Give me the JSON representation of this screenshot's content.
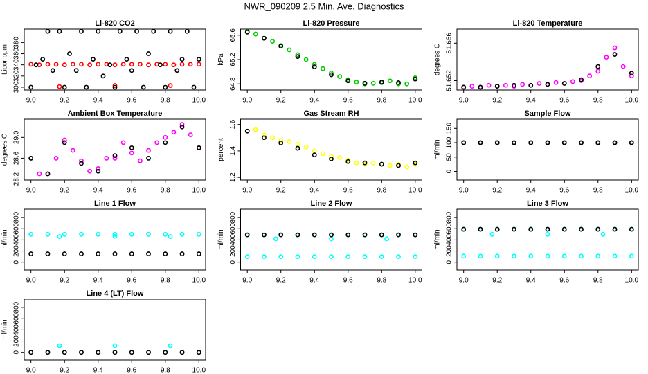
{
  "title": "NWR_090209  2.5 Min. Ave. Diagnostics",
  "chart_data": [
    {
      "type": "scatter",
      "title": "Li-820 CO2",
      "y_label": "Licor ppm",
      "xlim": [
        8.96,
        10.04
      ],
      "xticks": [
        {
          "value": 9,
          "label": "9.0"
        },
        9.2,
        9.4,
        9.6,
        9.8,
        {
          "value": 10,
          "label": "10.0"
        }
      ],
      "ylim": [
        295,
        404
      ],
      "yticks": [
        300,
        320,
        340,
        360,
        380
      ],
      "series": [
        {
          "color": "#ff0000",
          "x": [
            9.0,
            9.05,
            9.1,
            9.15,
            9.2,
            9.25,
            9.3,
            9.35,
            9.4,
            9.45,
            9.5,
            9.55,
            9.6,
            9.65,
            9.7,
            9.75,
            9.8,
            9.85,
            9.9,
            9.95,
            10.0
          ],
          "values": [
            341,
            340,
            341,
            341,
            340,
            341,
            341,
            340,
            341,
            341,
            340,
            341,
            341,
            341,
            340,
            341,
            341,
            340,
            341,
            341,
            341
          ]
        },
        {
          "color": "#ff0000",
          "x": [
            9.17,
            9.5,
            9.83
          ],
          "values": [
            301,
            303,
            303
          ]
        },
        {
          "color": "#000000",
          "x": [
            9.0,
            9.03,
            9.07,
            9.1,
            9.13,
            9.17,
            9.2,
            9.23,
            9.27,
            9.3,
            9.33,
            9.37,
            9.4,
            9.43,
            9.47,
            9.5,
            9.53,
            9.57,
            9.6,
            9.63,
            9.67,
            9.7,
            9.73,
            9.77,
            9.8,
            9.83,
            9.87,
            9.9,
            9.93,
            9.97,
            10.0
          ],
          "values": [
            300,
            340,
            350,
            400,
            330,
            400,
            300,
            360,
            330,
            400,
            300,
            350,
            400,
            320,
            340,
            300,
            400,
            350,
            330,
            400,
            300,
            360,
            400,
            340,
            300,
            400,
            330,
            350,
            400,
            300,
            350
          ]
        }
      ]
    },
    {
      "type": "scatter",
      "title": "Li-820 Pressure",
      "y_label": "kPa",
      "xlim": [
        8.96,
        10.04
      ],
      "xticks": [
        {
          "value": 9,
          "label": "9.0"
        },
        9.2,
        9.4,
        9.6,
        9.8,
        {
          "value": 10,
          "label": "10.0"
        }
      ],
      "ylim": [
        64.7,
        65.7
      ],
      "yticks": [
        64.8,
        65.2,
        65.6
      ],
      "series": [
        {
          "color": "#00cd00",
          "x": [
            9.0,
            9.05,
            9.1,
            9.15,
            9.2,
            9.25,
            9.3,
            9.35,
            9.4,
            9.45,
            9.5,
            9.55,
            9.6,
            9.65,
            9.7,
            9.75,
            9.8,
            9.85,
            9.9,
            9.95,
            10.0
          ],
          "values": [
            65.66,
            65.62,
            65.55,
            65.5,
            65.43,
            65.36,
            65.28,
            65.2,
            65.12,
            65.05,
            64.98,
            64.92,
            64.87,
            64.83,
            64.8,
            64.81,
            64.82,
            64.85,
            64.8,
            64.8,
            64.9
          ]
        },
        {
          "color": "#000000",
          "x": [
            9.0,
            9.1,
            9.2,
            9.3,
            9.4,
            9.5,
            9.6,
            9.7,
            9.8,
            9.9,
            10.0
          ],
          "values": [
            65.65,
            65.55,
            65.42,
            65.25,
            65.08,
            64.95,
            64.85,
            64.81,
            64.83,
            64.82,
            64.88
          ]
        }
      ]
    },
    {
      "type": "scatter",
      "title": "Li-820 Temperature",
      "y_label": "degrees C",
      "xlim": [
        8.96,
        10.04
      ],
      "xticks": [
        {
          "value": 9,
          "label": "9.0"
        },
        9.2,
        9.4,
        9.6,
        9.8,
        {
          "value": 10,
          "label": "10.0"
        }
      ],
      "ylim": [
        51.651,
        51.6575
      ],
      "yticks": [
        51.652,
        51.656
      ],
      "series": [
        {
          "color": "#ff00ff",
          "x": [
            9.0,
            9.05,
            9.1,
            9.15,
            9.2,
            9.25,
            9.3,
            9.35,
            9.4,
            9.45,
            9.5,
            9.55,
            9.6,
            9.65,
            9.7,
            9.75,
            9.8,
            9.85,
            9.9,
            9.95,
            10.0
          ],
          "values": [
            51.6513,
            51.6514,
            51.6513,
            51.6515,
            51.6514,
            51.6515,
            51.6514,
            51.6516,
            51.6515,
            51.6517,
            51.6516,
            51.6518,
            51.6517,
            51.6519,
            51.652,
            51.6525,
            51.653,
            51.6545,
            51.6555,
            51.6535,
            51.6525
          ]
        },
        {
          "color": "#000000",
          "x": [
            9.0,
            9.1,
            9.2,
            9.3,
            9.4,
            9.5,
            9.6,
            9.7,
            9.8,
            9.9,
            10.0
          ],
          "values": [
            51.6513,
            51.6513,
            51.6514,
            51.6515,
            51.6515,
            51.6516,
            51.6517,
            51.6521,
            51.6535,
            51.6548,
            51.6528
          ]
        }
      ]
    },
    {
      "type": "scatter",
      "title": "Ambient Box Temperature",
      "y_label": "degrees C",
      "xlim": [
        8.96,
        10.04
      ],
      "xticks": [
        {
          "value": 9,
          "label": "9.0"
        },
        9.2,
        9.4,
        9.6,
        9.8,
        {
          "value": 10,
          "label": "10.0"
        }
      ],
      "ylim": [
        28.18,
        29.35
      ],
      "yticks": [
        28.2,
        28.6,
        {
          "value": 29,
          "label": "29.0"
        }
      ],
      "series": [
        {
          "color": "#ff00ff",
          "x": [
            9.0,
            9.05,
            9.1,
            9.15,
            9.2,
            9.25,
            9.3,
            9.35,
            9.4,
            9.45,
            9.5,
            9.55,
            9.6,
            9.65,
            9.7,
            9.75,
            9.8,
            9.85,
            9.9,
            9.95,
            10.0
          ],
          "values": [
            28.6,
            28.3,
            28.3,
            28.6,
            28.95,
            28.75,
            28.55,
            28.35,
            28.4,
            28.6,
            28.6,
            28.9,
            28.7,
            28.55,
            28.75,
            28.9,
            29.0,
            29.1,
            29.25,
            29.05,
            28.8
          ]
        },
        {
          "color": "#000000",
          "x": [
            9.0,
            9.1,
            9.2,
            9.3,
            9.4,
            9.5,
            9.6,
            9.7,
            9.8,
            9.9,
            10.0
          ],
          "values": [
            28.6,
            28.3,
            28.9,
            28.5,
            28.35,
            28.65,
            28.8,
            28.6,
            28.9,
            29.2,
            28.8
          ]
        }
      ]
    },
    {
      "type": "scatter",
      "title": "Gas Stream RH",
      "y_label": "percent",
      "xlim": [
        8.96,
        10.04
      ],
      "xticks": [
        {
          "value": 9,
          "label": "9.0"
        },
        9.2,
        9.4,
        9.6,
        9.8,
        {
          "value": 10,
          "label": "10.0"
        }
      ],
      "ylim": [
        1.18,
        1.64
      ],
      "yticks": [
        1.2,
        1.4,
        1.6
      ],
      "series": [
        {
          "color": "#ffff00",
          "x": [
            9.0,
            9.05,
            9.1,
            9.15,
            9.2,
            9.25,
            9.3,
            9.35,
            9.4,
            9.45,
            9.5,
            9.55,
            9.6,
            9.65,
            9.7,
            9.75,
            9.8,
            9.85,
            9.9,
            9.95,
            10.0
          ],
          "values": [
            1.55,
            1.56,
            1.52,
            1.5,
            1.48,
            1.47,
            1.45,
            1.43,
            1.4,
            1.38,
            1.36,
            1.35,
            1.33,
            1.31,
            1.3,
            1.31,
            1.3,
            1.29,
            1.3,
            1.28,
            1.3
          ]
        },
        {
          "color": "#000000",
          "x": [
            9.0,
            9.1,
            9.2,
            9.3,
            9.4,
            9.5,
            9.6,
            9.7,
            9.8,
            9.9,
            10.0
          ],
          "values": [
            1.55,
            1.5,
            1.46,
            1.42,
            1.37,
            1.34,
            1.32,
            1.31,
            1.3,
            1.29,
            1.31
          ]
        }
      ]
    },
    {
      "type": "scatter",
      "title": "Sample Flow",
      "y_label": "ml/min",
      "xlim": [
        8.96,
        10.04
      ],
      "xticks": [
        {
          "value": 9,
          "label": "9.0"
        },
        9.2,
        9.4,
        9.6,
        9.8,
        {
          "value": 10,
          "label": "10.0"
        }
      ],
      "ylim": [
        -30,
        182
      ],
      "yticks": [
        0,
        50,
        100,
        150
      ],
      "series": [
        {
          "color": "#00008b",
          "x": [
            9.0,
            9.1,
            9.2,
            9.3,
            9.4,
            9.5,
            9.6,
            9.7,
            9.8,
            9.9,
            10.0
          ],
          "values": [
            100,
            100,
            100,
            100,
            100,
            100,
            100,
            100,
            100,
            100,
            100
          ]
        },
        {
          "color": "#000000",
          "x": [
            9.0,
            9.1,
            9.2,
            9.3,
            9.4,
            9.5,
            9.6,
            9.7,
            9.8,
            9.9,
            10.0
          ],
          "values": [
            100,
            100,
            100,
            100,
            100,
            100,
            100,
            100,
            100,
            100,
            100
          ]
        }
      ]
    },
    {
      "type": "scatter",
      "title": "Line 1 Flow",
      "y_label": "ml/min",
      "xlim": [
        8.96,
        10.04
      ],
      "xticks": [
        {
          "value": 9,
          "label": "9.0"
        },
        9.2,
        9.4,
        9.6,
        9.8,
        {
          "value": 10,
          "label": "10.0"
        }
      ],
      "ylim": [
        -140,
        950
      ],
      "yticks": [
        0,
        200,
        400,
        600,
        800
      ],
      "series": [
        {
          "color": "#00ffff",
          "x": [
            9.0,
            9.1,
            9.2,
            9.3,
            9.4,
            9.5,
            9.6,
            9.7,
            9.8,
            9.9,
            10.0
          ],
          "values": [
            500,
            500,
            500,
            500,
            500,
            500,
            500,
            500,
            500,
            500,
            500
          ]
        },
        {
          "color": "#00ffff",
          "x": [
            9.17,
            9.5,
            9.83
          ],
          "values": [
            460,
            465,
            460
          ]
        },
        {
          "color": "#000000",
          "x": [
            9.0,
            9.1,
            9.2,
            9.3,
            9.4,
            9.5,
            9.6,
            9.7,
            9.8,
            9.9,
            10.0
          ],
          "values": [
            150,
            150,
            150,
            150,
            150,
            150,
            150,
            150,
            150,
            150,
            150
          ]
        }
      ]
    },
    {
      "type": "scatter",
      "title": "Line 2 Flow",
      "y_label": "ml/min",
      "xlim": [
        8.96,
        10.04
      ],
      "xticks": [
        {
          "value": 9,
          "label": "9.0"
        },
        9.2,
        9.4,
        9.6,
        9.8,
        {
          "value": 10,
          "label": "10.0"
        }
      ],
      "ylim": [
        -140,
        950
      ],
      "yticks": [
        0,
        200,
        400,
        600,
        800
      ],
      "series": [
        {
          "color": "#00ffff",
          "x": [
            9.0,
            9.1,
            9.2,
            9.3,
            9.4,
            9.5,
            9.6,
            9.7,
            9.8,
            9.9,
            10.0
          ],
          "values": [
            490,
            490,
            490,
            490,
            490,
            490,
            490,
            490,
            490,
            490,
            490
          ]
        },
        {
          "color": "#00ffff",
          "x": [
            9.0,
            9.1,
            9.2,
            9.3,
            9.4,
            9.5,
            9.6,
            9.7,
            9.8,
            9.9,
            10.0
          ],
          "values": [
            100,
            100,
            100,
            100,
            100,
            100,
            100,
            100,
            100,
            100,
            100
          ]
        },
        {
          "color": "#00ffff",
          "x": [
            9.17,
            9.5,
            9.83
          ],
          "values": [
            420,
            420,
            420
          ]
        },
        {
          "color": "#000000",
          "x": [
            9.0,
            9.1,
            9.2,
            9.3,
            9.4,
            9.5,
            9.6,
            9.7,
            9.8,
            9.9,
            10.0
          ],
          "values": [
            490,
            490,
            490,
            490,
            490,
            490,
            490,
            490,
            490,
            490,
            490
          ]
        }
      ]
    },
    {
      "type": "scatter",
      "title": "Line 3 Flow",
      "y_label": "ml/min",
      "xlim": [
        8.96,
        10.04
      ],
      "xticks": [
        {
          "value": 9,
          "label": "9.0"
        },
        9.2,
        9.4,
        9.6,
        9.8,
        {
          "value": 10,
          "label": "10.0"
        }
      ],
      "ylim": [
        -140,
        950
      ],
      "yticks": [
        0,
        200,
        400,
        600,
        800
      ],
      "series": [
        {
          "color": "#00ffff",
          "x": [
            9.0,
            9.1,
            9.2,
            9.3,
            9.4,
            9.5,
            9.6,
            9.7,
            9.8,
            9.9,
            10.0
          ],
          "values": [
            590,
            590,
            590,
            590,
            590,
            590,
            590,
            590,
            590,
            590,
            590
          ]
        },
        {
          "color": "#00ffff",
          "x": [
            9.0,
            9.1,
            9.2,
            9.3,
            9.4,
            9.5,
            9.6,
            9.7,
            9.8,
            9.9,
            10.0
          ],
          "values": [
            110,
            110,
            110,
            110,
            110,
            110,
            110,
            110,
            110,
            110,
            110
          ]
        },
        {
          "color": "#00ffff",
          "x": [
            9.17,
            9.5,
            9.83
          ],
          "values": [
            500,
            500,
            500
          ]
        },
        {
          "color": "#000000",
          "x": [
            9.0,
            9.1,
            9.2,
            9.3,
            9.4,
            9.5,
            9.6,
            9.7,
            9.8,
            9.9,
            10.0
          ],
          "values": [
            590,
            590,
            590,
            590,
            590,
            590,
            590,
            590,
            590,
            590,
            590
          ]
        }
      ]
    },
    {
      "type": "scatter",
      "title": "Line 4 (LT) Flow",
      "y_label": "ml/min",
      "xlim": [
        8.96,
        10.04
      ],
      "xticks": [
        {
          "value": 9,
          "label": "9.0"
        },
        9.2,
        9.4,
        9.6,
        9.8,
        {
          "value": 10,
          "label": "10.0"
        }
      ],
      "ylim": [
        -140,
        950
      ],
      "yticks": [
        0,
        200,
        400,
        600,
        800
      ],
      "series": [
        {
          "color": "#00ffff",
          "x": [
            9.0,
            9.1,
            9.2,
            9.3,
            9.4,
            9.5,
            9.6,
            9.7,
            9.8,
            9.9,
            10.0
          ],
          "values": [
            0,
            0,
            0,
            0,
            0,
            0,
            0,
            0,
            0,
            0,
            0
          ]
        },
        {
          "color": "#00ffff",
          "x": [
            9.17,
            9.5,
            9.83
          ],
          "values": [
            120,
            120,
            120
          ]
        },
        {
          "color": "#000000",
          "x": [
            9.0,
            9.1,
            9.2,
            9.3,
            9.4,
            9.5,
            9.6,
            9.7,
            9.8,
            9.9,
            10.0
          ],
          "values": [
            0,
            0,
            0,
            0,
            0,
            0,
            0,
            0,
            0,
            0,
            0
          ]
        }
      ]
    }
  ]
}
